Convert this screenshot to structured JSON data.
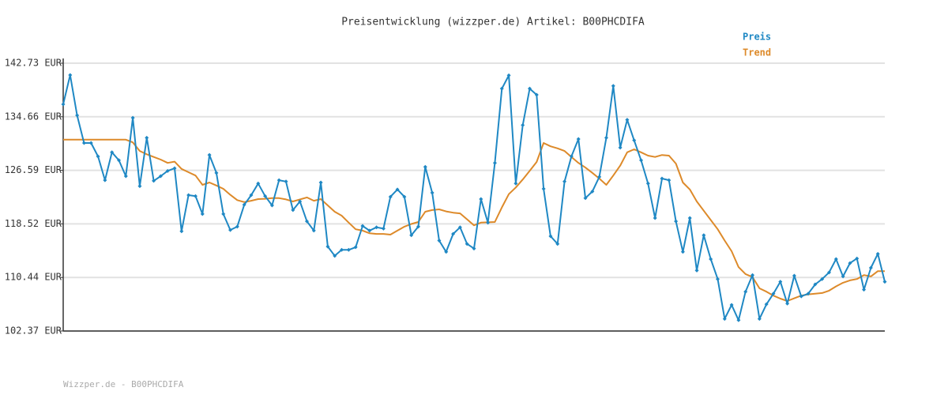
{
  "chart_data": {
    "type": "line",
    "title": "Preisentwicklung (wizzper.de) Artikel: B00PHCDIFA",
    "footer": "Wizzper.de - B00PHCDIFA",
    "categories": [
      null,
      null,
      null,
      null,
      null,
      null,
      null,
      null,
      null,
      null,
      null,
      null,
      null,
      null,
      null,
      null,
      null,
      null,
      null,
      null,
      null,
      null,
      null,
      null,
      null,
      null,
      null,
      null,
      null,
      null,
      null,
      null,
      null,
      null,
      null,
      null,
      null,
      null,
      null,
      null,
      null,
      null,
      null,
      null,
      null,
      null,
      null,
      null,
      null,
      null,
      null,
      null,
      null,
      null,
      null,
      null,
      null,
      null,
      null,
      null,
      null,
      null,
      null,
      null,
      null,
      null,
      null,
      null,
      null,
      null,
      null,
      null,
      null,
      null,
      null,
      null,
      null,
      null,
      null,
      null,
      null,
      null,
      null,
      null,
      null,
      null,
      null,
      null,
      null,
      null,
      null,
      null,
      null,
      null,
      null,
      null,
      null,
      null,
      null,
      null,
      null,
      null,
      null,
      null,
      null,
      null,
      null,
      null,
      null,
      null,
      null,
      null,
      null,
      null,
      null,
      null,
      null,
      null,
      null
    ],
    "series": [
      {
        "name": "Preis",
        "color": "#1f88c4",
        "markers": true,
        "values": [
          136.54,
          140.94,
          134.87,
          130.7,
          130.7,
          128.68,
          125.1,
          129.3,
          128.1,
          125.7,
          134.5,
          124.2,
          131.5,
          125.0,
          125.7,
          126.5,
          126.9,
          117.4,
          122.85,
          122.7,
          120.0,
          128.9,
          126.2,
          120.0,
          117.6,
          118.1,
          121.4,
          122.85,
          124.6,
          122.7,
          121.3,
          125.1,
          124.9,
          120.6,
          121.9,
          118.9,
          117.5,
          124.75,
          115.1,
          113.7,
          114.6,
          114.6,
          115.0,
          118.2,
          117.5,
          118.0,
          117.8,
          122.6,
          123.7,
          122.6,
          116.8,
          118.1,
          127.1,
          123.2,
          116.0,
          114.3,
          117.0,
          118.0,
          115.5,
          114.8,
          122.25,
          118.7,
          127.7,
          138.9,
          140.9,
          124.6,
          133.4,
          138.9,
          137.97,
          123.8,
          116.66,
          115.5,
          124.9,
          128.7,
          131.3,
          122.4,
          123.4,
          125.6,
          131.5,
          139.3,
          130.0,
          134.2,
          131.1,
          128.1,
          124.6,
          119.4,
          125.35,
          125.1,
          118.9,
          114.3,
          119.4,
          111.5,
          116.8,
          113.2,
          110.2,
          104.2,
          106.3,
          104.0,
          108.3,
          110.8,
          104.2,
          106.4,
          108.0,
          109.8,
          106.5,
          110.7,
          107.6,
          108.0,
          109.4,
          110.2,
          111.2,
          113.2,
          110.6,
          112.6,
          113.3,
          108.6,
          111.9,
          114.0,
          109.8
        ]
      },
      {
        "name": "Trend",
        "color": "#dd8a2a",
        "markers": false,
        "values": [
          131.2,
          131.2,
          131.2,
          131.2,
          131.2,
          131.2,
          131.2,
          131.2,
          131.2,
          131.2,
          130.8,
          129.5,
          129.0,
          128.6,
          128.2,
          127.7,
          127.9,
          126.8,
          126.3,
          125.8,
          124.4,
          124.75,
          124.3,
          123.8,
          122.9,
          122.1,
          121.8,
          122.0,
          122.25,
          122.3,
          122.4,
          122.4,
          122.2,
          121.9,
          122.2,
          122.5,
          122.0,
          122.25,
          121.3,
          120.35,
          119.75,
          118.7,
          117.7,
          117.5,
          117.1,
          117.0,
          117.0,
          116.9,
          117.5,
          118.1,
          118.5,
          118.8,
          120.35,
          120.6,
          120.7,
          120.4,
          120.2,
          120.1,
          119.2,
          118.3,
          118.7,
          118.75,
          118.8,
          121.0,
          123.0,
          124.0,
          125.2,
          126.5,
          127.85,
          130.7,
          130.2,
          129.9,
          129.5,
          128.6,
          127.7,
          127.0,
          126.2,
          125.35,
          124.4,
          125.8,
          127.3,
          129.3,
          129.75,
          129.3,
          128.8,
          128.6,
          128.9,
          128.8,
          127.6,
          124.75,
          123.7,
          121.9,
          120.5,
          119.1,
          117.7,
          116.0,
          114.4,
          112.0,
          110.95,
          110.5,
          108.8,
          108.3,
          107.7,
          107.25,
          106.9,
          107.3,
          107.7,
          107.9,
          108.0,
          108.1,
          108.45,
          109.1,
          109.65,
          110.0,
          110.2,
          110.8,
          110.6,
          111.4,
          111.4
        ]
      }
    ],
    "ylim": [
      102.37,
      142.73
    ],
    "yticks": [
      {
        "value": 102.37,
        "label": "102.37 EUR"
      },
      {
        "value": 110.44,
        "label": "110.44 EUR"
      },
      {
        "value": 118.52,
        "label": "118.52 EUR"
      },
      {
        "value": 126.59,
        "label": "126.59 EUR"
      },
      {
        "value": 134.66,
        "label": "134.66 EUR"
      },
      {
        "value": 142.73,
        "label": "142.73 EUR"
      }
    ],
    "grid": true,
    "legend": "top-right"
  }
}
